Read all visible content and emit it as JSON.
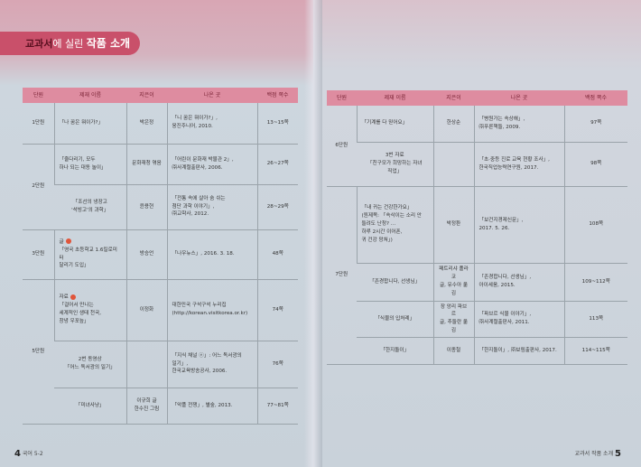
{
  "left_page": {
    "title_prefix": "교과서",
    "title_mid": "에 실린",
    "title_main": "작품 소개",
    "page_number": "4",
    "page_label": "국어 5-2"
  },
  "right_page": {
    "page_number": "5",
    "page_label": "교과서 작품 소개"
  },
  "headers": [
    "단원",
    "제재 이름",
    "지은이",
    "나온 곳",
    "백점 쪽수"
  ],
  "left_table": {
    "units": [
      "1단원",
      "2단원",
      "3단원",
      "5단원"
    ],
    "rows": [
      {
        "title": "「나 꿈은 뭐이가?」",
        "author": "박은정",
        "source": "「니 꿈은 뭐이가?」,\n웅진주니어, 2010.",
        "pages": "13~15쪽"
      },
      {
        "title": "「줄다리기, 모두\n하나 되는 대동 놀이」",
        "author": "문화재청 엮음",
        "source": "「어린이 문화재 박물관 2」,\n㈜사계절출판사, 2006.",
        "pages": "26~27쪽"
      },
      {
        "title": "「조선의 냉장고\n'석빙고'의 과학」",
        "author": "윤용현",
        "source": "「전통 속에 살아 숨 쉬는\n첨단 과학 이야기」,\n㈜교학사, 2012.",
        "pages": "28~29쪽"
      },
      {
        "label": "글",
        "title": "「영국 초등학교 1.6킬로미터\n달리기 도입」",
        "author": "방승언",
        "source": "「나우뉴스」, 2016. 3. 18.",
        "pages": "48쪽"
      },
      {
        "label": "자료",
        "title": "「걸어서 만나는\n세계적인 생태 천국,\n창녕 우포늪」",
        "author": "이정화",
        "source": "대한민국 구석구석 누리집\n(http://korean.visitkorea.or.kr)",
        "pages": "74쪽"
      },
      {
        "title": "2번 동영상\n「어느 독서광의 일기」",
        "author": "",
        "source": "「지식 채널 ⓔ」: 어느 독서광의\n일기」,\n한국교육방송공사, 2006.",
        "pages": "76쪽"
      },
      {
        "title": "「미녀사냥」",
        "author": "이규희 글\n한수진 그림",
        "source": "「악플 전쟁」, 별숲, 2013.",
        "pages": "77~81쪽"
      }
    ]
  },
  "right_table": {
    "units": [
      "6단원",
      "7단원"
    ],
    "rows": [
      {
        "title": "「기계를 다 믿어요」",
        "author": "한상순",
        "source": "「병원가는 속상해」,\n㈜푸른책들, 2009.",
        "pages": "97쪽"
      },
      {
        "title": "3번 자료\n「친구모가 희망하는 자녀\n직업」",
        "author": "",
        "source": "「초·중등 진로 교육 현황 조사」,\n한국직업능력연구원, 2017.",
        "pages": "98쪽"
      },
      {
        "title": "「내 귀는 건강한가요」\n(원제목: 「속삭이는 소리 안\n들려도 난청? …\n하루 2시간 이어폰,\n귀 건강 망쳐」)",
        "author": "박정환",
        "source": "「보건지경제신문」,\n2017. 5. 26.",
        "pages": "108쪽"
      },
      {
        "title": "「존경합니다, 선생님」",
        "author": "패트리샤 폴라코\n글, 유수아 옮김",
        "source": "「존경합니다, 선생님」,\n아이세움, 2015.",
        "pages": "109~112쪽"
      },
      {
        "title": "「식물의 입처례」",
        "author": "장 앙리 파브르\n글, 추둘란 옮김",
        "source": "「파브르 식물 이야기」,\n㈜사계절출판사, 2011.",
        "pages": "113쪽"
      },
      {
        "title": "「한지돌이」",
        "author": "이종철",
        "source": "「한지돌이」, ㈜보림출판사, 2017.",
        "pages": "114~115쪽"
      }
    ]
  },
  "colors": {
    "accent": "#c9506a",
    "header_fill": "#de8ca0",
    "bullet": "#e0553a"
  }
}
